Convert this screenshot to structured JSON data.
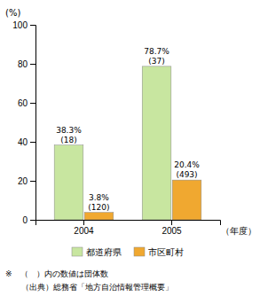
{
  "chart_data": {
    "type": "bar",
    "categories": [
      "2004",
      "2005"
    ],
    "series": [
      {
        "name": "都道府県",
        "color": "#c8e6a0",
        "values": [
          38.3,
          78.7
        ],
        "value_labels": [
          "38.3%",
          "78.7%"
        ],
        "counts": [
          18,
          37
        ],
        "count_labels": [
          "(18)",
          "(37)"
        ]
      },
      {
        "name": "市区町村",
        "color": "#f0a830",
        "values": [
          3.8,
          20.4
        ],
        "value_labels": [
          "3.8%",
          "20.4%"
        ],
        "counts": [
          120,
          493
        ],
        "count_labels": [
          "(120)",
          "(493)"
        ]
      }
    ],
    "y_label": "(%)",
    "x_label": "（年度）",
    "annotations": [
      "※　（　）内の数値は団体数",
      "　　（出典）総務省「地方自治情報管理概要」"
    ],
    "ylim": [
      0,
      100
    ],
    "yticks": [
      0,
      20,
      40,
      60,
      80,
      100
    ],
    "data_labels": true,
    "grid": false,
    "legend": "bottom"
  }
}
